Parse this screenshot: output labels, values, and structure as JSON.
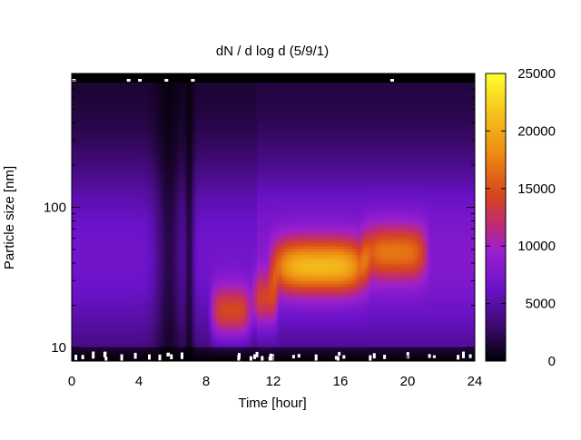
{
  "chart_data": {
    "type": "heatmap",
    "title": "dN / d log d (5/9/1)",
    "xlabel": "Time [hour]",
    "ylabel": "Particle size [nm]",
    "xlim": [
      0,
      24
    ],
    "x_ticks": [
      0,
      4,
      8,
      12,
      16,
      20,
      24
    ],
    "y_scale": "log",
    "ylim": [
      8,
      900
    ],
    "y_ticks": [
      10,
      100
    ],
    "colorbar": {
      "range": [
        0,
        25000
      ],
      "ticks": [
        0,
        5000,
        10000,
        15000,
        20000,
        25000
      ],
      "colors": [
        "#000000",
        "#3c0a6e",
        "#6a12c8",
        "#9a1fd0",
        "#c02c70",
        "#d8471a",
        "#ec8a12",
        "#f7c21e",
        "#ffff2c"
      ],
      "stops": [
        0,
        0.12,
        0.25,
        0.38,
        0.48,
        0.58,
        0.72,
        0.86,
        1.0
      ]
    },
    "grid": false,
    "modes": [
      {
        "t_start": 8.5,
        "t_end": 10.5,
        "diameter_nm": 18,
        "peak": 15000
      },
      {
        "t_start": 11.0,
        "t_end": 12.0,
        "diameter_nm": 22,
        "peak": 13000
      },
      {
        "t_start": 12.0,
        "t_end": 17.5,
        "diameter_nm": 38,
        "peak": 19000
      },
      {
        "t_start": 17.5,
        "t_end": 21.0,
        "diameter_nm": 48,
        "peak": 15000
      }
    ],
    "dips": [
      {
        "t": 5.8,
        "width": 0.6
      },
      {
        "t": 7.0,
        "width": 0.2
      }
    ]
  }
}
